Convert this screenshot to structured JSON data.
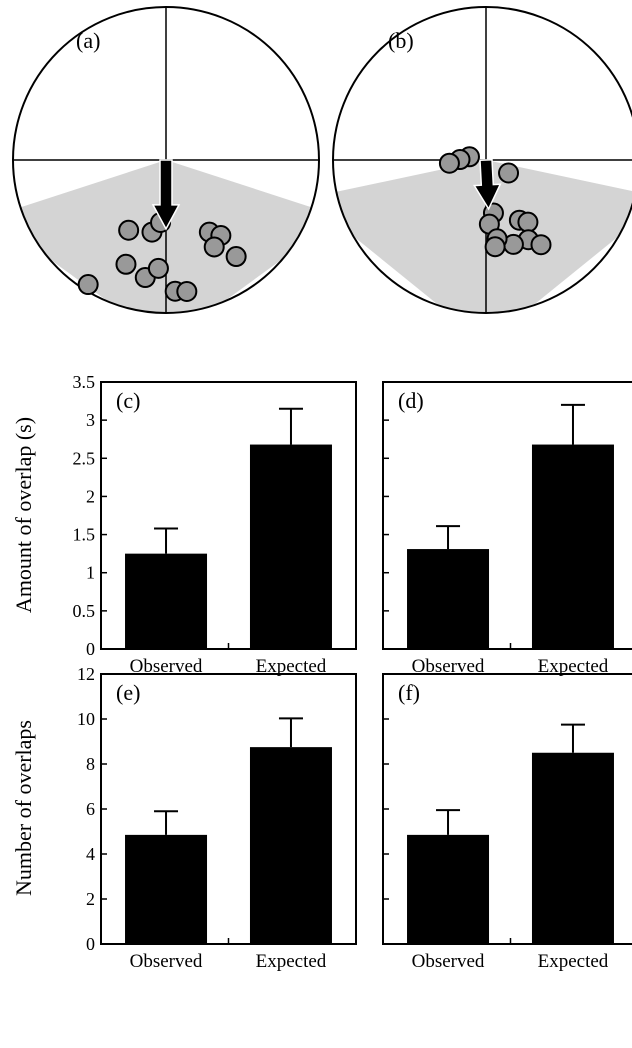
{
  "colors": {
    "shade": "#d4d4d4",
    "dot": "#999999",
    "bar": "#000000"
  },
  "chart_data": [
    {
      "type": "scatter",
      "panel_label": "(a)",
      "shaded_sector_deg": [
        -18,
        198
      ],
      "vector": {
        "direction_deg": 270,
        "length": 0.45
      },
      "points_polar": [
        [
          0.48,
          259
        ],
        [
          0.55,
          301
        ],
        [
          0.61,
          306
        ],
        [
          0.78,
          306
        ],
        [
          0.41,
          265
        ],
        [
          0.52,
          242
        ],
        [
          0.96,
          238
        ],
        [
          0.73,
          249
        ],
        [
          0.78,
          260
        ],
        [
          0.71,
          266
        ],
        [
          0.65,
          299
        ],
        [
          0.86,
          274
        ],
        [
          0.87,
          279
        ]
      ]
    },
    {
      "type": "scatter",
      "panel_label": "(b)",
      "shaded_sector_deg": [
        -12,
        192
      ],
      "vector": {
        "direction_deg": 273,
        "length": 0.32
      },
      "points_polar": [
        [
          0.11,
          169
        ],
        [
          0.17,
          179
        ],
        [
          0.24,
          185
        ],
        [
          0.17,
          330
        ],
        [
          0.35,
          278
        ],
        [
          0.42,
          273
        ],
        [
          0.45,
          299
        ],
        [
          0.49,
          304
        ],
        [
          0.59,
          298
        ],
        [
          0.58,
          288
        ],
        [
          0.52,
          278
        ],
        [
          0.57,
          276
        ],
        [
          0.66,
          303
        ]
      ]
    },
    {
      "type": "bar",
      "panel_label": "(c)",
      "categories": [
        "Observed",
        "Expected"
      ],
      "values": [
        1.25,
        2.68
      ],
      "errors": [
        0.33,
        0.47
      ],
      "ylabel": "Amount of overlap (s)",
      "ylim": [
        0,
        3.5
      ],
      "yticks": [
        "0",
        "0.5",
        "1",
        "1.5",
        "2",
        "2.5",
        "3",
        "3.5"
      ]
    },
    {
      "type": "bar",
      "panel_label": "(d)",
      "categories": [
        "Observed",
        "Expected"
      ],
      "values": [
        1.31,
        2.68
      ],
      "errors": [
        0.3,
        0.52
      ],
      "ylim": [
        0,
        3.5
      ]
    },
    {
      "type": "bar",
      "panel_label": "(e)",
      "categories": [
        "Observed",
        "Expected"
      ],
      "values": [
        4.85,
        8.75
      ],
      "errors": [
        1.05,
        1.28
      ],
      "ylabel": "Number of overlaps",
      "ylim": [
        0,
        12
      ],
      "yticks": [
        "0",
        "2",
        "4",
        "6",
        "8",
        "10",
        "12"
      ]
    },
    {
      "type": "bar",
      "panel_label": "(f)",
      "categories": [
        "Observed",
        "Expected"
      ],
      "values": [
        4.85,
        8.5
      ],
      "errors": [
        1.1,
        1.25
      ],
      "ylim": [
        0,
        12
      ]
    }
  ]
}
